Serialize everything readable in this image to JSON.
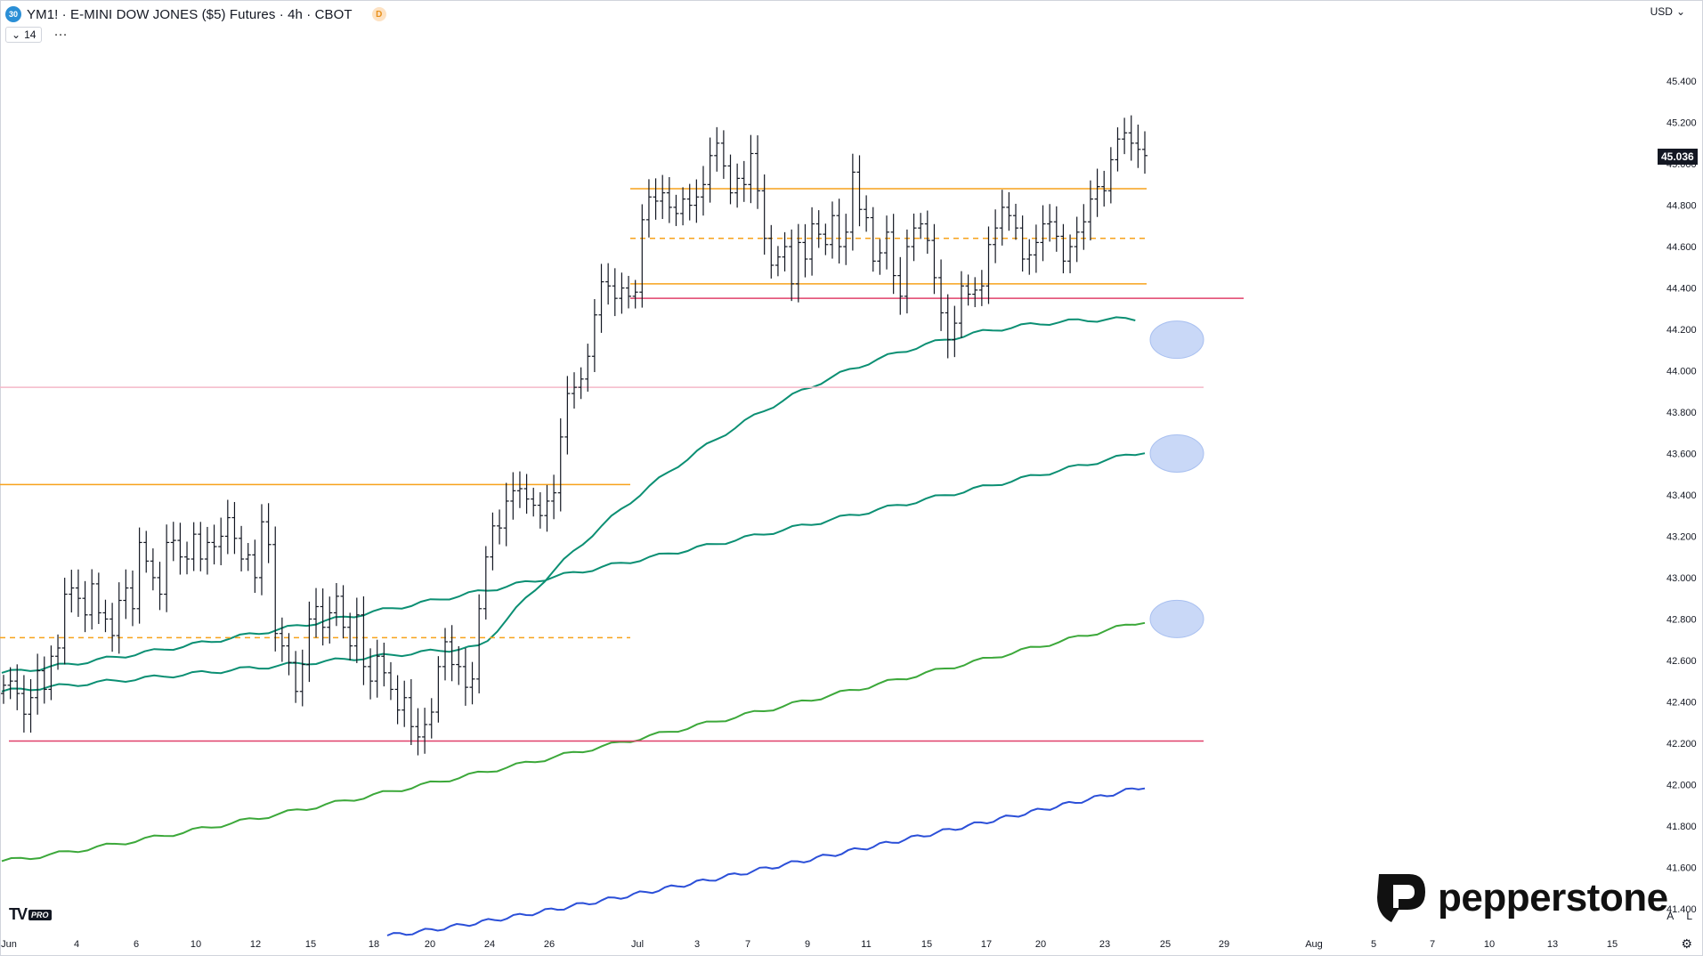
{
  "header": {
    "symbol_badge": "30",
    "title": "YM1! · E-MINI DOW JONES ($5) Futures · 4h · CBOT",
    "d_badge": "D",
    "indicator_value": "14",
    "currency": "USD"
  },
  "last_price_label": "45.036",
  "logo_tv_mark": "TV",
  "logo_tv_pro": "PRO",
  "brand": "pepperstone",
  "scale_buttons": [
    "A",
    "L"
  ],
  "colors": {
    "candle": "#131722",
    "orange_level": "#f7a21b",
    "pink_level": "#e0406a",
    "light_pink_level": "#f4b8c8",
    "teal_ma": "#0b8f73",
    "green_ma": "#3ca83a",
    "blue_ma": "#2b4fd8",
    "target_circle": "#c9d8f7"
  },
  "chart_data": {
    "type": "candlestick",
    "title": "",
    "xlabel": "",
    "ylabel": "",
    "y_axis_position": "right",
    "ylim": [
      41.24,
      45.62
    ],
    "y_ticks": [
      45.4,
      45.2,
      45.0,
      44.8,
      44.6,
      44.4,
      44.2,
      44.0,
      43.8,
      43.6,
      43.4,
      43.2,
      43.0,
      42.8,
      42.6,
      42.4,
      42.2,
      42.0,
      41.8,
      41.6,
      41.4
    ],
    "y_tick_labels": [
      "45.400",
      "45.200",
      "45.000",
      "44.800",
      "44.600",
      "44.400",
      "44.200",
      "44.000",
      "43.800",
      "43.600",
      "43.400",
      "43.200",
      "43.000",
      "42.800",
      "42.600",
      "42.400",
      "42.200",
      "42.000",
      "41.800",
      "41.600",
      "41.400"
    ],
    "x_tick_labels": [
      "Jun",
      "4",
      "6",
      "10",
      "12",
      "15",
      "18",
      "20",
      "24",
      "26",
      "Jul",
      "3",
      "7",
      "9",
      "11",
      "15",
      "17",
      "20",
      "23",
      "25",
      "29",
      "Aug",
      "5",
      "7",
      "10",
      "13",
      "15"
    ],
    "last_price": 45.036,
    "price_path": [
      42.48,
      42.5,
      42.44,
      42.34,
      42.42,
      42.55,
      42.46,
      42.62,
      42.66,
      42.92,
      42.95,
      42.9,
      42.82,
      42.97,
      42.83,
      42.8,
      42.72,
      42.89,
      42.95,
      42.85,
      43.17,
      43.08,
      43.0,
      42.92,
      43.17,
      43.18,
      43.1,
      43.09,
      43.21,
      43.09,
      43.17,
      43.15,
      43.2,
      43.29,
      43.19,
      43.09,
      43.11,
      43.0,
      43.27,
      43.16,
      42.73,
      42.67,
      42.59,
      42.45,
      42.58,
      42.8,
      42.86,
      42.76,
      42.83,
      42.91,
      42.76,
      42.67,
      42.82,
      42.57,
      42.5,
      42.62,
      42.54,
      42.46,
      42.36,
      42.42,
      42.28,
      42.23,
      42.29,
      42.35,
      42.57,
      42.69,
      42.58,
      42.57,
      42.47,
      42.51,
      42.85,
      43.1,
      43.25,
      43.24,
      43.37,
      43.42,
      43.43,
      43.38,
      43.35,
      43.3,
      43.37,
      43.41,
      43.68,
      43.89,
      43.92,
      43.96,
      44.07,
      44.27,
      44.43,
      44.41,
      44.35,
      44.4,
      44.36,
      44.38,
      44.73,
      44.84,
      44.82,
      44.86,
      44.79,
      44.76,
      44.83,
      44.8,
      44.84,
      44.9,
      45.04,
      45.1,
      44.99,
      44.86,
      44.93,
      44.9,
      45.05,
      44.87,
      44.64,
      44.51,
      44.55,
      44.6,
      44.42,
      44.62,
      44.54,
      44.71,
      44.66,
      44.61,
      44.75,
      44.6,
      44.67,
      44.96,
      44.78,
      44.74,
      44.53,
      44.57,
      44.67,
      44.46,
      44.36,
      44.6,
      44.69,
      44.71,
      44.63,
      44.45,
      44.28,
      44.15,
      44.23,
      44.41,
      44.37,
      44.39,
      44.41,
      44.61,
      44.69,
      44.79,
      44.75,
      44.69,
      44.54,
      44.56,
      44.62,
      44.71,
      44.72,
      44.65,
      44.53,
      44.6,
      44.67,
      44.72,
      44.83,
      44.89,
      44.87,
      45.02,
      45.12,
      45.15,
      45.1,
      45.07,
      45.04
    ],
    "moving_averages": [
      {
        "name": "teal",
        "start": 42.45,
        "end": 44.25,
        "shape": "fast"
      },
      {
        "name": "teal-2",
        "start": 42.54,
        "end": 43.61,
        "shape": "linear"
      },
      {
        "name": "green",
        "start": 41.63,
        "end": 42.79,
        "shape": "linear"
      },
      {
        "name": "blue",
        "start": 41.27,
        "end": 41.99,
        "shape": "linear"
      }
    ],
    "levels": [
      {
        "name": "orange-upper-left",
        "value": 43.45,
        "style": "solid",
        "color": "orange"
      },
      {
        "name": "orange-mid-left",
        "value": 42.71,
        "style": "dashed",
        "color": "orange"
      },
      {
        "name": "orange-upper-right",
        "value": 44.88,
        "style": "solid",
        "color": "orange"
      },
      {
        "name": "orange-mid-right",
        "value": 44.64,
        "style": "dashed",
        "color": "orange"
      },
      {
        "name": "orange-lower-right",
        "value": 44.42,
        "style": "solid",
        "color": "orange"
      },
      {
        "name": "red-upper",
        "value": 44.35,
        "style": "solid",
        "color": "red"
      },
      {
        "name": "pink-mid",
        "value": 43.92,
        "style": "solid",
        "color": "lightpink"
      },
      {
        "name": "red-lower",
        "value": 42.21,
        "style": "solid",
        "color": "red"
      }
    ],
    "target_zones": [
      44.15,
      43.6,
      42.8
    ],
    "grid": false,
    "legend": "none"
  }
}
